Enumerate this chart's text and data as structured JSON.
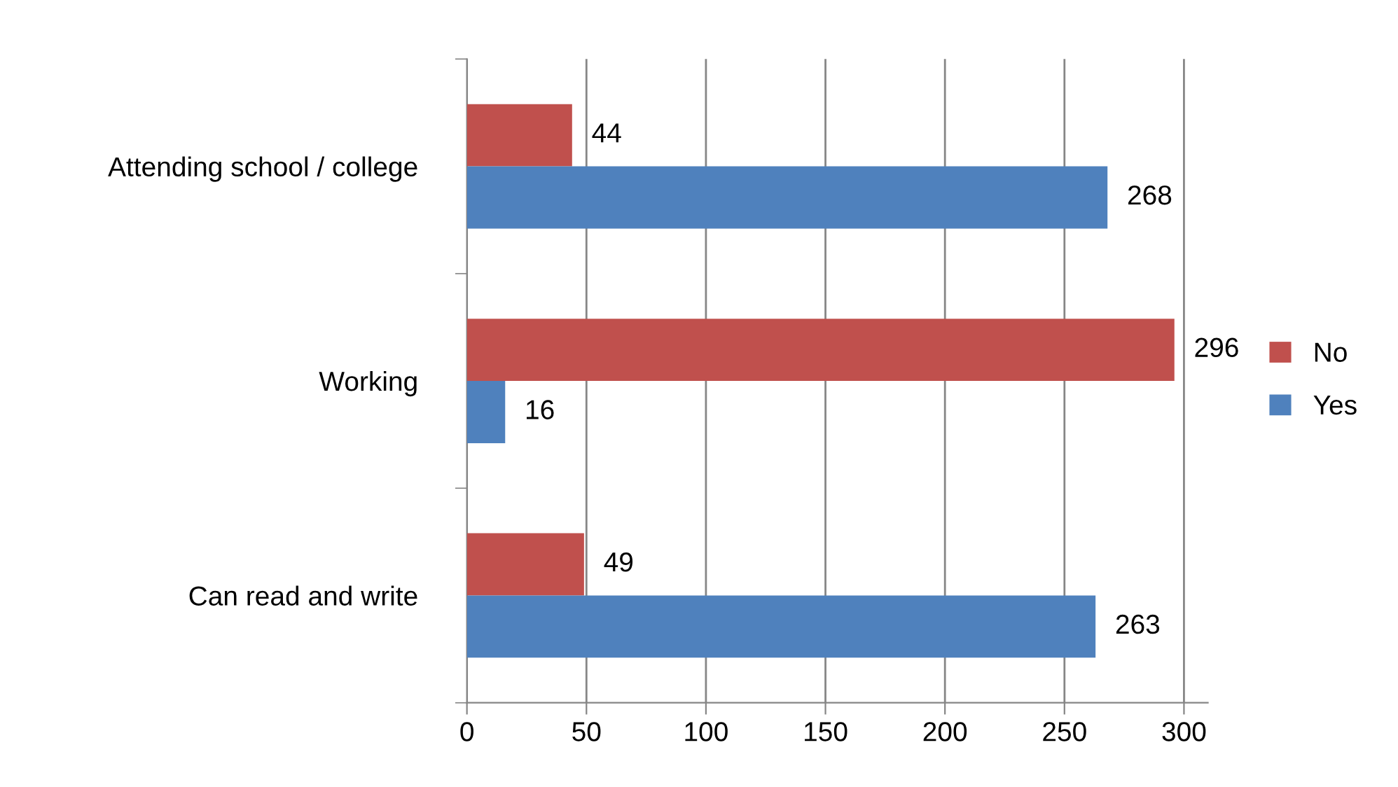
{
  "chart_data": {
    "type": "bar",
    "orientation": "horizontal",
    "categories": [
      "Attending school / college",
      "Working",
      "Can read and write"
    ],
    "series": [
      {
        "name": "No",
        "color": "#c0504d",
        "values": [
          44,
          296,
          49
        ]
      },
      {
        "name": "Yes",
        "color": "#4f81bd",
        "values": [
          268,
          16,
          263
        ]
      }
    ],
    "xlim": [
      0,
      310
    ],
    "xticks": [
      0,
      50,
      100,
      150,
      200,
      250,
      300
    ],
    "grid": "x",
    "legend": "right",
    "data_labels": true
  }
}
